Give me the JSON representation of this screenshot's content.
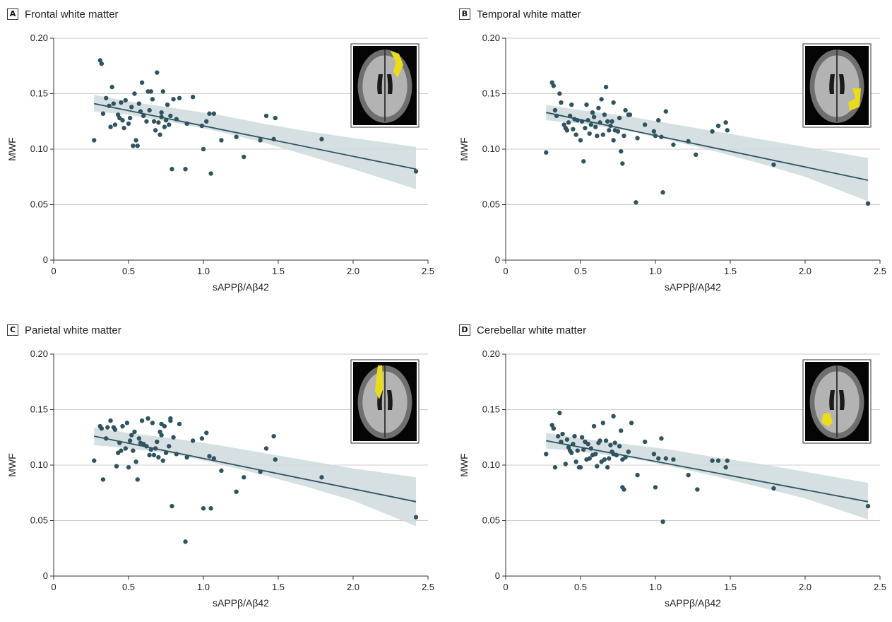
{
  "figure": {
    "colors": {
      "point": "#2f5460",
      "fit_line": "#2f5460",
      "band": "#cfdadd",
      "grid": "#cccccc",
      "highlight": "#e8dc1c"
    }
  },
  "chart_data": [
    {
      "type": "scatter",
      "panel_letter": "A",
      "title": "Frontal white matter",
      "xlabel": "sAPPβ/Aβ42",
      "ylabel": "MWF",
      "xlim": [
        0,
        2.5
      ],
      "ylim": [
        0,
        0.2
      ],
      "xticks": [
        "0",
        "0.5",
        "1.0",
        "1.5",
        "2.0",
        "2.5"
      ],
      "yticks": [
        "0",
        "0.05",
        "0.10",
        "0.15",
        "0.20"
      ],
      "grid": "horizontal",
      "inset": "axial brain MRI slice with yellow region (frontal)",
      "fit": {
        "x": [
          0.27,
          2.42
        ],
        "y": [
          0.141,
          0.082
        ]
      },
      "band": {
        "x": [
          0.27,
          0.5,
          0.8,
          1.1,
          1.4,
          1.7,
          2.0,
          2.42
        ],
        "lower": [
          0.134,
          0.131,
          0.124,
          0.116,
          0.106,
          0.094,
          0.082,
          0.064
        ],
        "upper": [
          0.149,
          0.143,
          0.137,
          0.131,
          0.123,
          0.116,
          0.11,
          0.102
        ]
      },
      "points": [
        [
          0.27,
          0.108
        ],
        [
          0.31,
          0.18
        ],
        [
          0.32,
          0.177
        ],
        [
          0.33,
          0.132
        ],
        [
          0.35,
          0.146
        ],
        [
          0.37,
          0.139
        ],
        [
          0.38,
          0.12
        ],
        [
          0.39,
          0.156
        ],
        [
          0.4,
          0.141
        ],
        [
          0.41,
          0.122
        ],
        [
          0.43,
          0.131
        ],
        [
          0.44,
          0.128
        ],
        [
          0.45,
          0.142
        ],
        [
          0.46,
          0.126
        ],
        [
          0.47,
          0.119
        ],
        [
          0.48,
          0.144
        ],
        [
          0.5,
          0.123
        ],
        [
          0.51,
          0.128
        ],
        [
          0.52,
          0.138
        ],
        [
          0.53,
          0.103
        ],
        [
          0.54,
          0.15
        ],
        [
          0.55,
          0.108
        ],
        [
          0.56,
          0.103
        ],
        [
          0.57,
          0.141
        ],
        [
          0.58,
          0.134
        ],
        [
          0.59,
          0.16
        ],
        [
          0.6,
          0.13
        ],
        [
          0.62,
          0.125
        ],
        [
          0.63,
          0.152
        ],
        [
          0.64,
          0.135
        ],
        [
          0.65,
          0.152
        ],
        [
          0.66,
          0.145
        ],
        [
          0.67,
          0.125
        ],
        [
          0.68,
          0.117
        ],
        [
          0.69,
          0.169
        ],
        [
          0.7,
          0.124
        ],
        [
          0.71,
          0.113
        ],
        [
          0.72,
          0.133
        ],
        [
          0.72,
          0.129
        ],
        [
          0.73,
          0.152
        ],
        [
          0.74,
          0.12
        ],
        [
          0.75,
          0.126
        ],
        [
          0.76,
          0.14
        ],
        [
          0.77,
          0.122
        ],
        [
          0.78,
          0.13
        ],
        [
          0.79,
          0.082
        ],
        [
          0.8,
          0.145
        ],
        [
          0.82,
          0.127
        ],
        [
          0.84,
          0.146
        ],
        [
          0.88,
          0.082
        ],
        [
          0.89,
          0.123
        ],
        [
          0.93,
          0.147
        ],
        [
          0.99,
          0.121
        ],
        [
          1.0,
          0.1
        ],
        [
          1.02,
          0.125
        ],
        [
          1.04,
          0.132
        ],
        [
          1.05,
          0.078
        ],
        [
          1.07,
          0.132
        ],
        [
          1.12,
          0.108
        ],
        [
          1.22,
          0.111
        ],
        [
          1.27,
          0.093
        ],
        [
          1.38,
          0.108
        ],
        [
          1.42,
          0.13
        ],
        [
          1.47,
          0.109
        ],
        [
          1.48,
          0.128
        ],
        [
          1.79,
          0.109
        ],
        [
          2.42,
          0.08
        ]
      ]
    },
    {
      "type": "scatter",
      "panel_letter": "B",
      "title": "Temporal white matter",
      "xlabel": "sAPPβ/Aβ42",
      "ylabel": "MWF",
      "xlim": [
        0,
        2.5
      ],
      "ylim": [
        0,
        0.2
      ],
      "xticks": [
        "0",
        "0.5",
        "1.0",
        "1.5",
        "2.0",
        "2.5"
      ],
      "yticks": [
        "0",
        "0.05",
        "0.10",
        "0.15",
        "0.20"
      ],
      "grid": "horizontal",
      "inset": "axial brain MRI slice with yellow region (temporal)",
      "fit": {
        "x": [
          0.27,
          2.42
        ],
        "y": [
          0.133,
          0.072
        ]
      },
      "band": {
        "x": [
          0.27,
          0.5,
          0.8,
          1.1,
          1.4,
          1.7,
          2.0,
          2.42
        ],
        "lower": [
          0.126,
          0.123,
          0.117,
          0.108,
          0.098,
          0.087,
          0.075,
          0.053
        ],
        "upper": [
          0.14,
          0.135,
          0.13,
          0.123,
          0.116,
          0.109,
          0.102,
          0.092
        ]
      },
      "points": [
        [
          0.27,
          0.097
        ],
        [
          0.31,
          0.16
        ],
        [
          0.32,
          0.157
        ],
        [
          0.33,
          0.135
        ],
        [
          0.34,
          0.13
        ],
        [
          0.36,
          0.15
        ],
        [
          0.37,
          0.142
        ],
        [
          0.39,
          0.122
        ],
        [
          0.4,
          0.119
        ],
        [
          0.41,
          0.117
        ],
        [
          0.42,
          0.124
        ],
        [
          0.43,
          0.13
        ],
        [
          0.44,
          0.14
        ],
        [
          0.45,
          0.118
        ],
        [
          0.46,
          0.127
        ],
        [
          0.47,
          0.113
        ],
        [
          0.48,
          0.126
        ],
        [
          0.5,
          0.108
        ],
        [
          0.51,
          0.125
        ],
        [
          0.52,
          0.089
        ],
        [
          0.53,
          0.119
        ],
        [
          0.54,
          0.14
        ],
        [
          0.55,
          0.126
        ],
        [
          0.56,
          0.114
        ],
        [
          0.57,
          0.122
        ],
        [
          0.58,
          0.133
        ],
        [
          0.59,
          0.129
        ],
        [
          0.6,
          0.12
        ],
        [
          0.61,
          0.112
        ],
        [
          0.62,
          0.137
        ],
        [
          0.63,
          0.124
        ],
        [
          0.64,
          0.145
        ],
        [
          0.65,
          0.113
        ],
        [
          0.66,
          0.131
        ],
        [
          0.67,
          0.156
        ],
        [
          0.68,
          0.125
        ],
        [
          0.69,
          0.117
        ],
        [
          0.7,
          0.121
        ],
        [
          0.71,
          0.125
        ],
        [
          0.72,
          0.108
        ],
        [
          0.72,
          0.142
        ],
        [
          0.73,
          0.117
        ],
        [
          0.75,
          0.116
        ],
        [
          0.76,
          0.128
        ],
        [
          0.77,
          0.098
        ],
        [
          0.78,
          0.087
        ],
        [
          0.79,
          0.112
        ],
        [
          0.8,
          0.135
        ],
        [
          0.82,
          0.131
        ],
        [
          0.83,
          0.131
        ],
        [
          0.87,
          0.052
        ],
        [
          0.88,
          0.11
        ],
        [
          0.93,
          0.122
        ],
        [
          0.99,
          0.116
        ],
        [
          1.0,
          0.112
        ],
        [
          1.02,
          0.126
        ],
        [
          1.04,
          0.111
        ],
        [
          1.05,
          0.061
        ],
        [
          1.07,
          0.134
        ],
        [
          1.12,
          0.104
        ],
        [
          1.22,
          0.107
        ],
        [
          1.27,
          0.095
        ],
        [
          1.38,
          0.116
        ],
        [
          1.42,
          0.121
        ],
        [
          1.47,
          0.124
        ],
        [
          1.48,
          0.117
        ],
        [
          1.79,
          0.086
        ],
        [
          2.42,
          0.051
        ]
      ]
    },
    {
      "type": "scatter",
      "panel_letter": "C",
      "title": "Parietal white matter",
      "xlabel": "sAPPβ/Aβ42",
      "ylabel": "MWF",
      "xlim": [
        0,
        2.5
      ],
      "ylim": [
        0,
        0.2
      ],
      "xticks": [
        "0",
        "0.5",
        "1.0",
        "1.5",
        "2.0",
        "2.5"
      ],
      "yticks": [
        "0",
        "0.05",
        "0.10",
        "0.15",
        "0.20"
      ],
      "grid": "horizontal",
      "inset": "axial brain MRI slice with yellow region (parietal)",
      "fit": {
        "x": [
          0.27,
          2.42
        ],
        "y": [
          0.126,
          0.067
        ]
      },
      "band": {
        "x": [
          0.27,
          0.5,
          0.8,
          1.1,
          1.4,
          1.7,
          2.0,
          2.42
        ],
        "lower": [
          0.118,
          0.115,
          0.11,
          0.101,
          0.091,
          0.08,
          0.068,
          0.045
        ],
        "upper": [
          0.134,
          0.129,
          0.124,
          0.118,
          0.111,
          0.104,
          0.097,
          0.089
        ]
      },
      "points": [
        [
          0.27,
          0.104
        ],
        [
          0.31,
          0.135
        ],
        [
          0.32,
          0.133
        ],
        [
          0.33,
          0.087
        ],
        [
          0.35,
          0.124
        ],
        [
          0.36,
          0.134
        ],
        [
          0.38,
          0.14
        ],
        [
          0.4,
          0.134
        ],
        [
          0.41,
          0.132
        ],
        [
          0.42,
          0.099
        ],
        [
          0.43,
          0.111
        ],
        [
          0.44,
          0.12
        ],
        [
          0.45,
          0.113
        ],
        [
          0.46,
          0.135
        ],
        [
          0.48,
          0.115
        ],
        [
          0.49,
          0.138
        ],
        [
          0.5,
          0.098
        ],
        [
          0.51,
          0.122
        ],
        [
          0.52,
          0.127
        ],
        [
          0.53,
          0.113
        ],
        [
          0.54,
          0.13
        ],
        [
          0.55,
          0.103
        ],
        [
          0.56,
          0.087
        ],
        [
          0.57,
          0.124
        ],
        [
          0.58,
          0.12
        ],
        [
          0.59,
          0.14
        ],
        [
          0.6,
          0.119
        ],
        [
          0.62,
          0.117
        ],
        [
          0.63,
          0.142
        ],
        [
          0.64,
          0.109
        ],
        [
          0.65,
          0.114
        ],
        [
          0.66,
          0.138
        ],
        [
          0.67,
          0.109
        ],
        [
          0.68,
          0.115
        ],
        [
          0.69,
          0.121
        ],
        [
          0.7,
          0.107
        ],
        [
          0.71,
          0.13
        ],
        [
          0.72,
          0.137
        ],
        [
          0.72,
          0.127
        ],
        [
          0.73,
          0.104
        ],
        [
          0.74,
          0.135
        ],
        [
          0.75,
          0.111
        ],
        [
          0.77,
          0.117
        ],
        [
          0.78,
          0.142
        ],
        [
          0.78,
          0.14
        ],
        [
          0.79,
          0.063
        ],
        [
          0.8,
          0.125
        ],
        [
          0.82,
          0.11
        ],
        [
          0.84,
          0.137
        ],
        [
          0.88,
          0.031
        ],
        [
          0.89,
          0.107
        ],
        [
          0.93,
          0.122
        ],
        [
          0.99,
          0.124
        ],
        [
          1.0,
          0.061
        ],
        [
          1.02,
          0.129
        ],
        [
          1.04,
          0.108
        ],
        [
          1.05,
          0.061
        ],
        [
          1.07,
          0.106
        ],
        [
          1.12,
          0.095
        ],
        [
          1.22,
          0.076
        ],
        [
          1.27,
          0.089
        ],
        [
          1.38,
          0.094
        ],
        [
          1.42,
          0.115
        ],
        [
          1.47,
          0.126
        ],
        [
          1.48,
          0.105
        ],
        [
          1.79,
          0.089
        ],
        [
          2.42,
          0.053
        ]
      ]
    },
    {
      "type": "scatter",
      "panel_letter": "D",
      "title": "Cerebellar white matter",
      "xlabel": "sAPPβ/Aβ42",
      "ylabel": "MWF",
      "xlim": [
        0,
        2.5
      ],
      "ylim": [
        0,
        0.2
      ],
      "xticks": [
        "0",
        "0.5",
        "1.0",
        "1.5",
        "2.0",
        "2.5"
      ],
      "yticks": [
        "0",
        "0.05",
        "0.10",
        "0.15",
        "0.20"
      ],
      "grid": "horizontal",
      "inset": "axial brain MRI slice with yellow region (cerebellar)",
      "fit": {
        "x": [
          0.27,
          2.42
        ],
        "y": [
          0.122,
          0.067
        ]
      },
      "band": {
        "x": [
          0.27,
          0.5,
          0.8,
          1.1,
          1.4,
          1.7,
          2.0,
          2.42
        ],
        "lower": [
          0.115,
          0.112,
          0.107,
          0.099,
          0.09,
          0.08,
          0.07,
          0.051
        ],
        "upper": [
          0.129,
          0.124,
          0.119,
          0.114,
          0.107,
          0.101,
          0.094,
          0.084
        ]
      },
      "points": [
        [
          0.27,
          0.11
        ],
        [
          0.31,
          0.136
        ],
        [
          0.32,
          0.133
        ],
        [
          0.33,
          0.098
        ],
        [
          0.35,
          0.126
        ],
        [
          0.36,
          0.147
        ],
        [
          0.37,
          0.121
        ],
        [
          0.38,
          0.128
        ],
        [
          0.4,
          0.101
        ],
        [
          0.41,
          0.123
        ],
        [
          0.42,
          0.116
        ],
        [
          0.43,
          0.113
        ],
        [
          0.44,
          0.111
        ],
        [
          0.45,
          0.119
        ],
        [
          0.46,
          0.126
        ],
        [
          0.47,
          0.103
        ],
        [
          0.48,
          0.113
        ],
        [
          0.49,
          0.098
        ],
        [
          0.5,
          0.098
        ],
        [
          0.51,
          0.125
        ],
        [
          0.52,
          0.114
        ],
        [
          0.53,
          0.121
        ],
        [
          0.54,
          0.105
        ],
        [
          0.55,
          0.119
        ],
        [
          0.56,
          0.106
        ],
        [
          0.57,
          0.115
        ],
        [
          0.58,
          0.109
        ],
        [
          0.59,
          0.135
        ],
        [
          0.6,
          0.11
        ],
        [
          0.61,
          0.099
        ],
        [
          0.62,
          0.12
        ],
        [
          0.63,
          0.122
        ],
        [
          0.64,
          0.103
        ],
        [
          0.65,
          0.138
        ],
        [
          0.66,
          0.105
        ],
        [
          0.67,
          0.122
        ],
        [
          0.68,
          0.098
        ],
        [
          0.69,
          0.106
        ],
        [
          0.7,
          0.118
        ],
        [
          0.71,
          0.112
        ],
        [
          0.72,
          0.144
        ],
        [
          0.72,
          0.11
        ],
        [
          0.73,
          0.12
        ],
        [
          0.74,
          0.109
        ],
        [
          0.76,
          0.117
        ],
        [
          0.77,
          0.131
        ],
        [
          0.78,
          0.08
        ],
        [
          0.78,
          0.105
        ],
        [
          0.79,
          0.078
        ],
        [
          0.8,
          0.107
        ],
        [
          0.82,
          0.112
        ],
        [
          0.84,
          0.138
        ],
        [
          0.88,
          0.091
        ],
        [
          0.93,
          0.121
        ],
        [
          0.99,
          0.11
        ],
        [
          1.0,
          0.08
        ],
        [
          1.02,
          0.106
        ],
        [
          1.04,
          0.124
        ],
        [
          1.05,
          0.049
        ],
        [
          1.07,
          0.106
        ],
        [
          1.12,
          0.105
        ],
        [
          1.22,
          0.091
        ],
        [
          1.28,
          0.078
        ],
        [
          1.38,
          0.104
        ],
        [
          1.42,
          0.104
        ],
        [
          1.47,
          0.098
        ],
        [
          1.48,
          0.104
        ],
        [
          1.79,
          0.079
        ],
        [
          2.42,
          0.063
        ]
      ]
    }
  ]
}
